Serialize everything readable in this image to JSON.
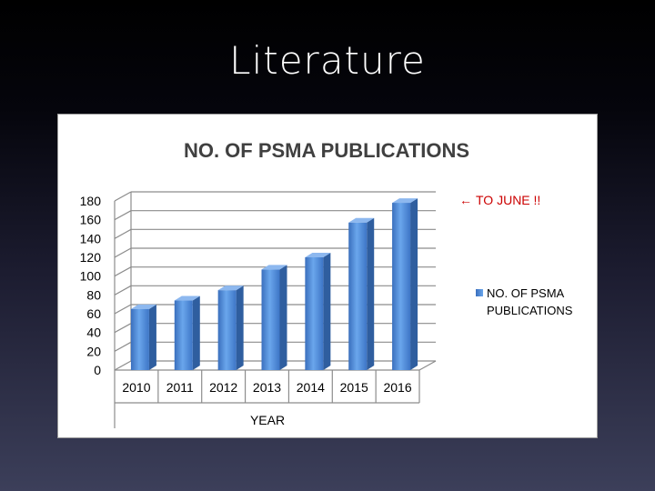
{
  "slide": {
    "title": "Literature"
  },
  "chart_data": {
    "type": "bar",
    "title": "NO. OF PSMA PUBLICATIONS",
    "xlabel": "YEAR",
    "ylabel": "",
    "categories": [
      "2010",
      "2011",
      "2012",
      "2013",
      "2014",
      "2015",
      "2016"
    ],
    "series": [
      {
        "name": "NO. OF PSMA PUBLICATIONS",
        "values": [
          65,
          74,
          85,
          107,
          120,
          157,
          178
        ],
        "color": "#4a86d8"
      }
    ],
    "ylim": [
      0,
      180
    ],
    "yticks": [
      "0",
      "20",
      "40",
      "60",
      "80",
      "100",
      "120",
      "140",
      "160",
      "180"
    ],
    "grid": true,
    "legend": "right",
    "style": "3d-column",
    "annotation": {
      "text": "TO JUNE !!",
      "arrow": "←",
      "color": "#cc0000"
    }
  }
}
